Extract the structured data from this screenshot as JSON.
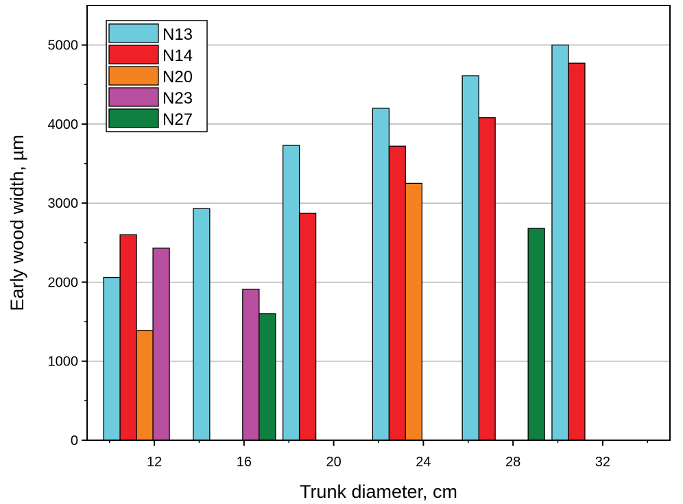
{
  "chart_data": {
    "type": "bar",
    "title": "",
    "xlabel": "Trunk diameter, cm",
    "ylabel": "Early wood width, µm",
    "categories": [
      "12",
      "16",
      "20",
      "24",
      "28",
      "32"
    ],
    "ylim": [
      0,
      5500
    ],
    "yticks": [
      0,
      1000,
      2000,
      3000,
      4000,
      5000
    ],
    "grid": true,
    "legend_position": "top-left",
    "series": [
      {
        "name": "N13",
        "color": "#6ccbdc",
        "values": [
          2060,
          2930,
          3730,
          4200,
          4610,
          5000
        ]
      },
      {
        "name": "N14",
        "color": "#ee2128",
        "values": [
          2600,
          null,
          2870,
          3720,
          4080,
          4770
        ]
      },
      {
        "name": "N20",
        "color": "#f58220",
        "values": [
          1390,
          null,
          null,
          3250,
          null,
          null
        ]
      },
      {
        "name": "N23",
        "color": "#b9509f",
        "values": [
          2430,
          1910,
          null,
          null,
          null,
          null
        ]
      },
      {
        "name": "N27",
        "color": "#0f8040",
        "values": [
          null,
          1600,
          null,
          null,
          2680,
          null
        ]
      }
    ]
  }
}
